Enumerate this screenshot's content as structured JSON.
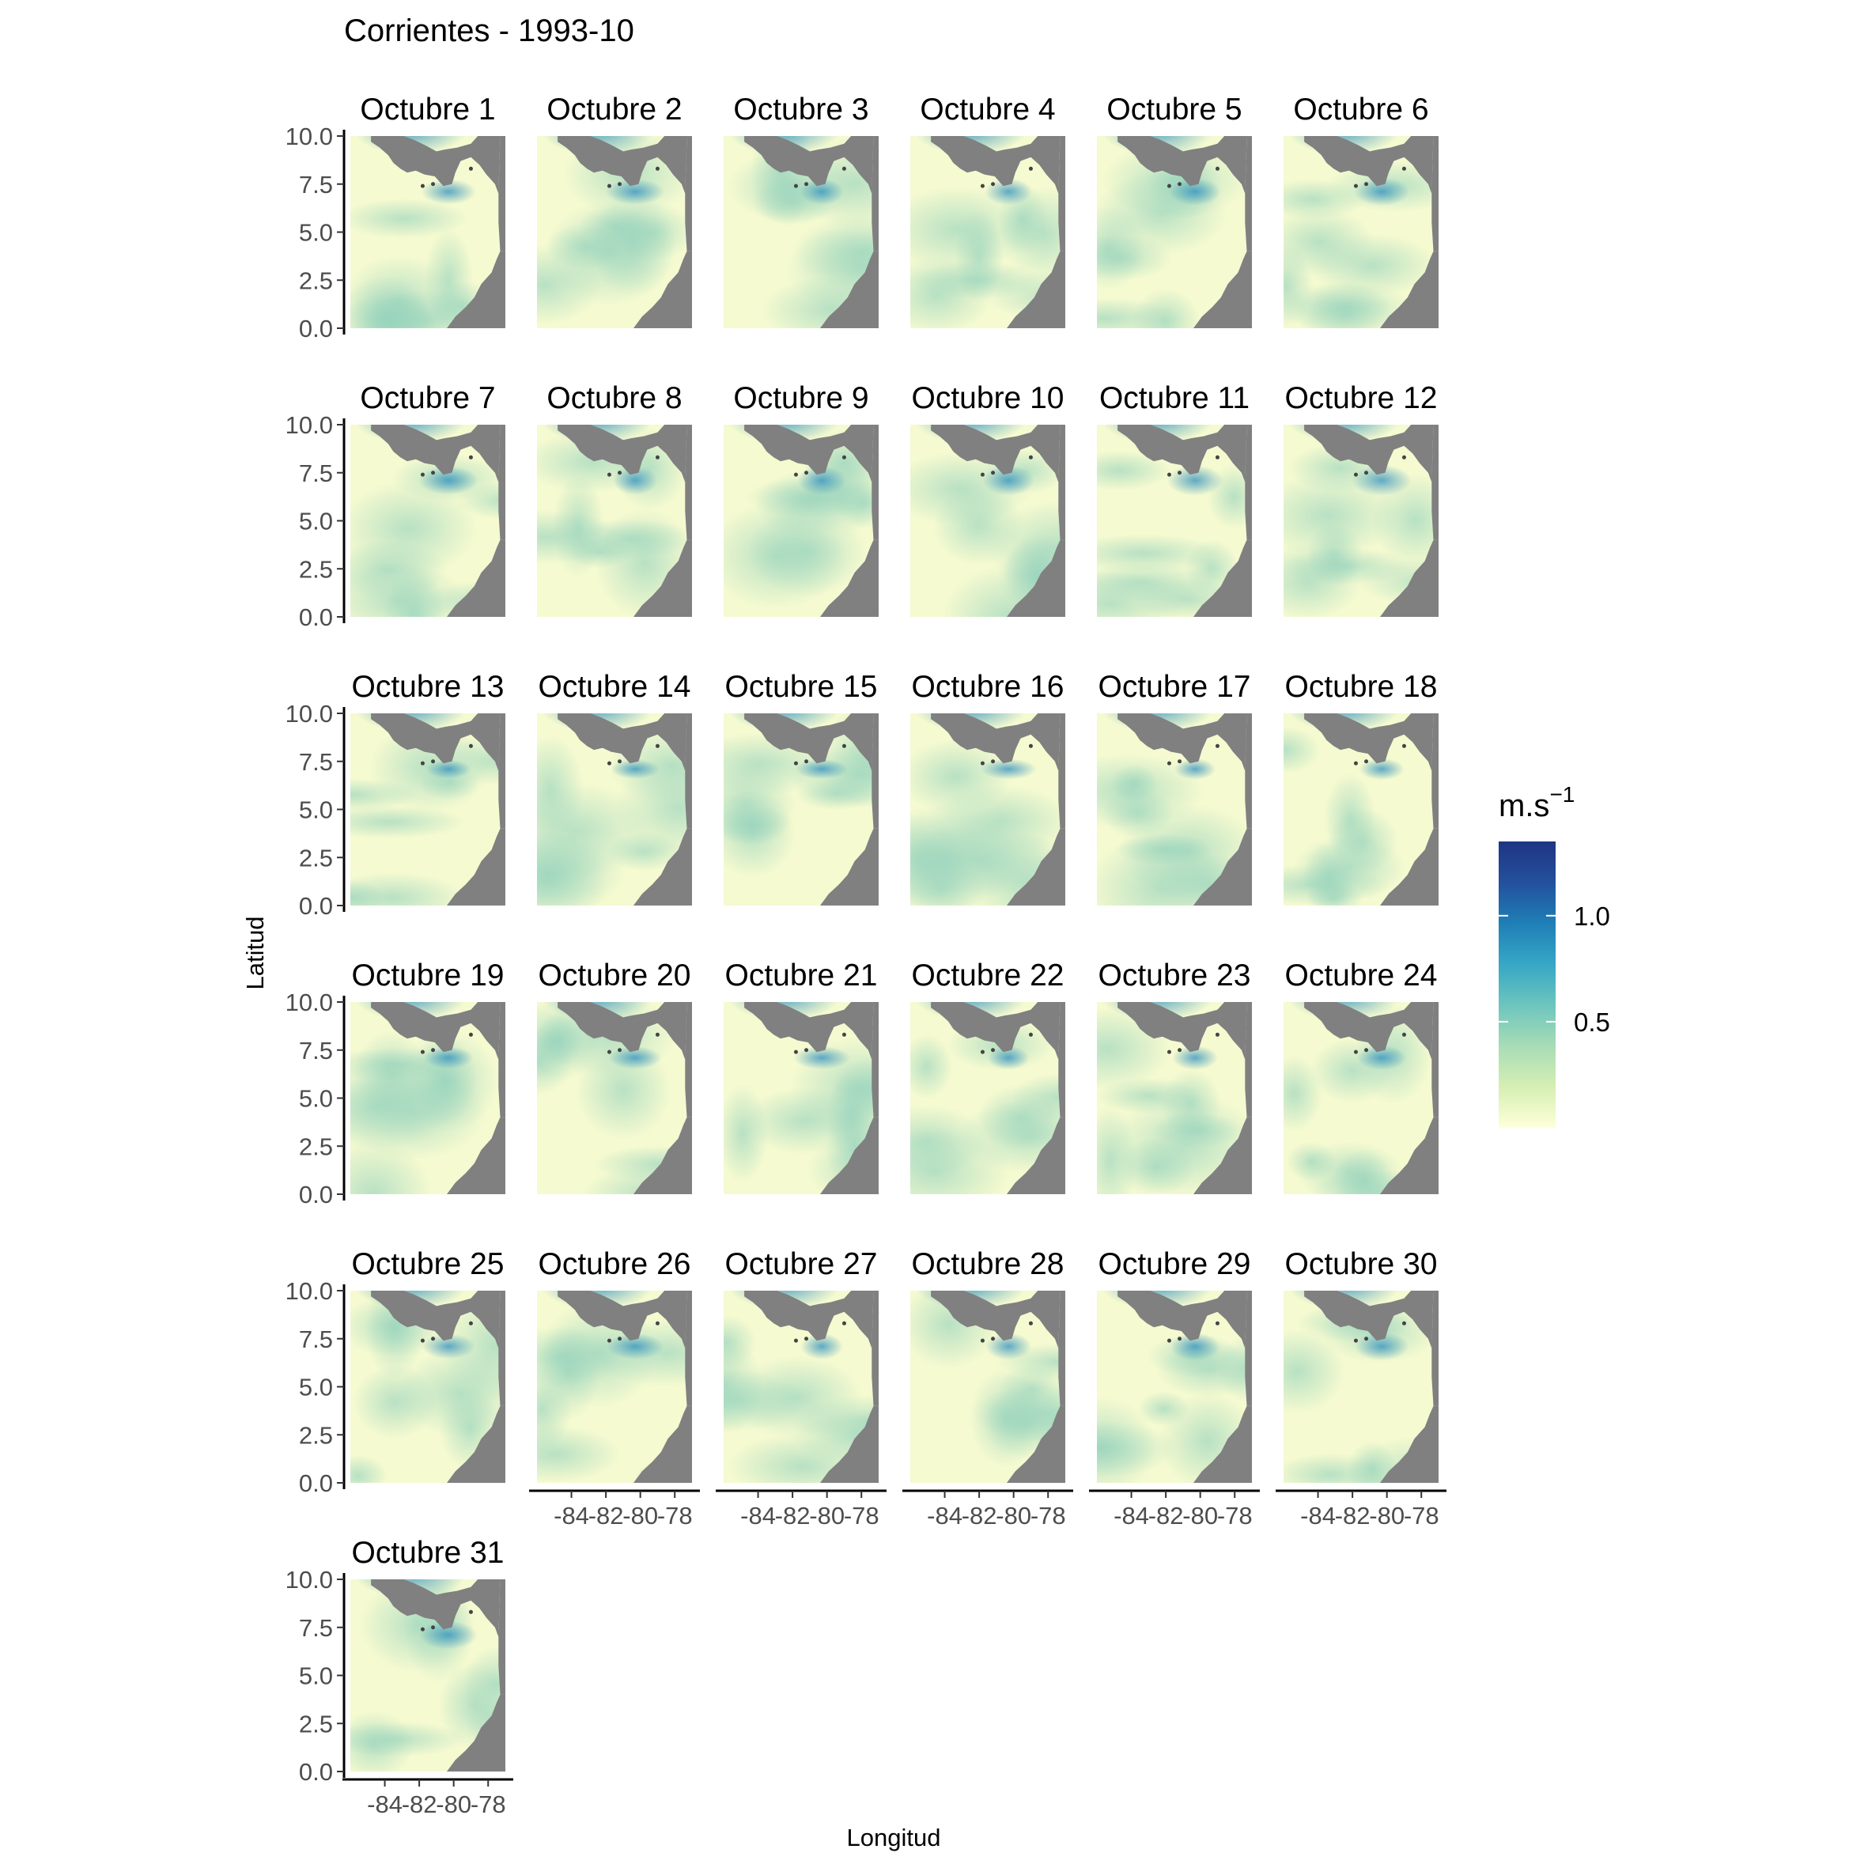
{
  "chart_data": {
    "type": "heatmap",
    "title": "Corrientes - 1993-10",
    "xlabel": "Longitud",
    "ylabel": "Latitud",
    "facet_labels": [
      "Octubre 1",
      "Octubre 2",
      "Octubre 3",
      "Octubre 4",
      "Octubre 5",
      "Octubre 6",
      "Octubre 7",
      "Octubre 8",
      "Octubre 9",
      "Octubre 10",
      "Octubre 11",
      "Octubre 12",
      "Octubre 13",
      "Octubre 14",
      "Octubre 15",
      "Octubre 16",
      "Octubre 17",
      "Octubre 18",
      "Octubre 19",
      "Octubre 20",
      "Octubre 21",
      "Octubre 22",
      "Octubre 23",
      "Octubre 24",
      "Octubre 25",
      "Octubre 26",
      "Octubre 27",
      "Octubre 28",
      "Octubre 29",
      "Octubre 30",
      "Octubre 31"
    ],
    "facet_columns": 6,
    "xlim": [
      -86,
      -77
    ],
    "ylim": [
      0,
      10
    ],
    "x_ticks": [
      -84,
      -82,
      -80,
      -78
    ],
    "x_tick_labels": [
      "-84",
      "-82",
      "-80",
      "-78"
    ],
    "y_ticks": [
      0,
      2.5,
      5,
      7.5,
      10
    ],
    "y_tick_labels": [
      "0.0",
      "2.5",
      "5.0",
      "7.5",
      "10.0"
    ],
    "legend": {
      "title": "m.s",
      "title_superscript": "−1",
      "breaks": [
        0.5,
        1.0
      ],
      "break_labels": [
        "0.5",
        "1.0"
      ],
      "range": [
        0,
        1.35
      ],
      "colors": [
        "#ffffd9",
        "#d5efb3",
        "#a8dcb6",
        "#6cc5be",
        "#36a7c5",
        "#1f7fb6",
        "#23509c",
        "#1f3583"
      ],
      "placement": "right"
    },
    "land_color": "#808080",
    "grid": false
  }
}
